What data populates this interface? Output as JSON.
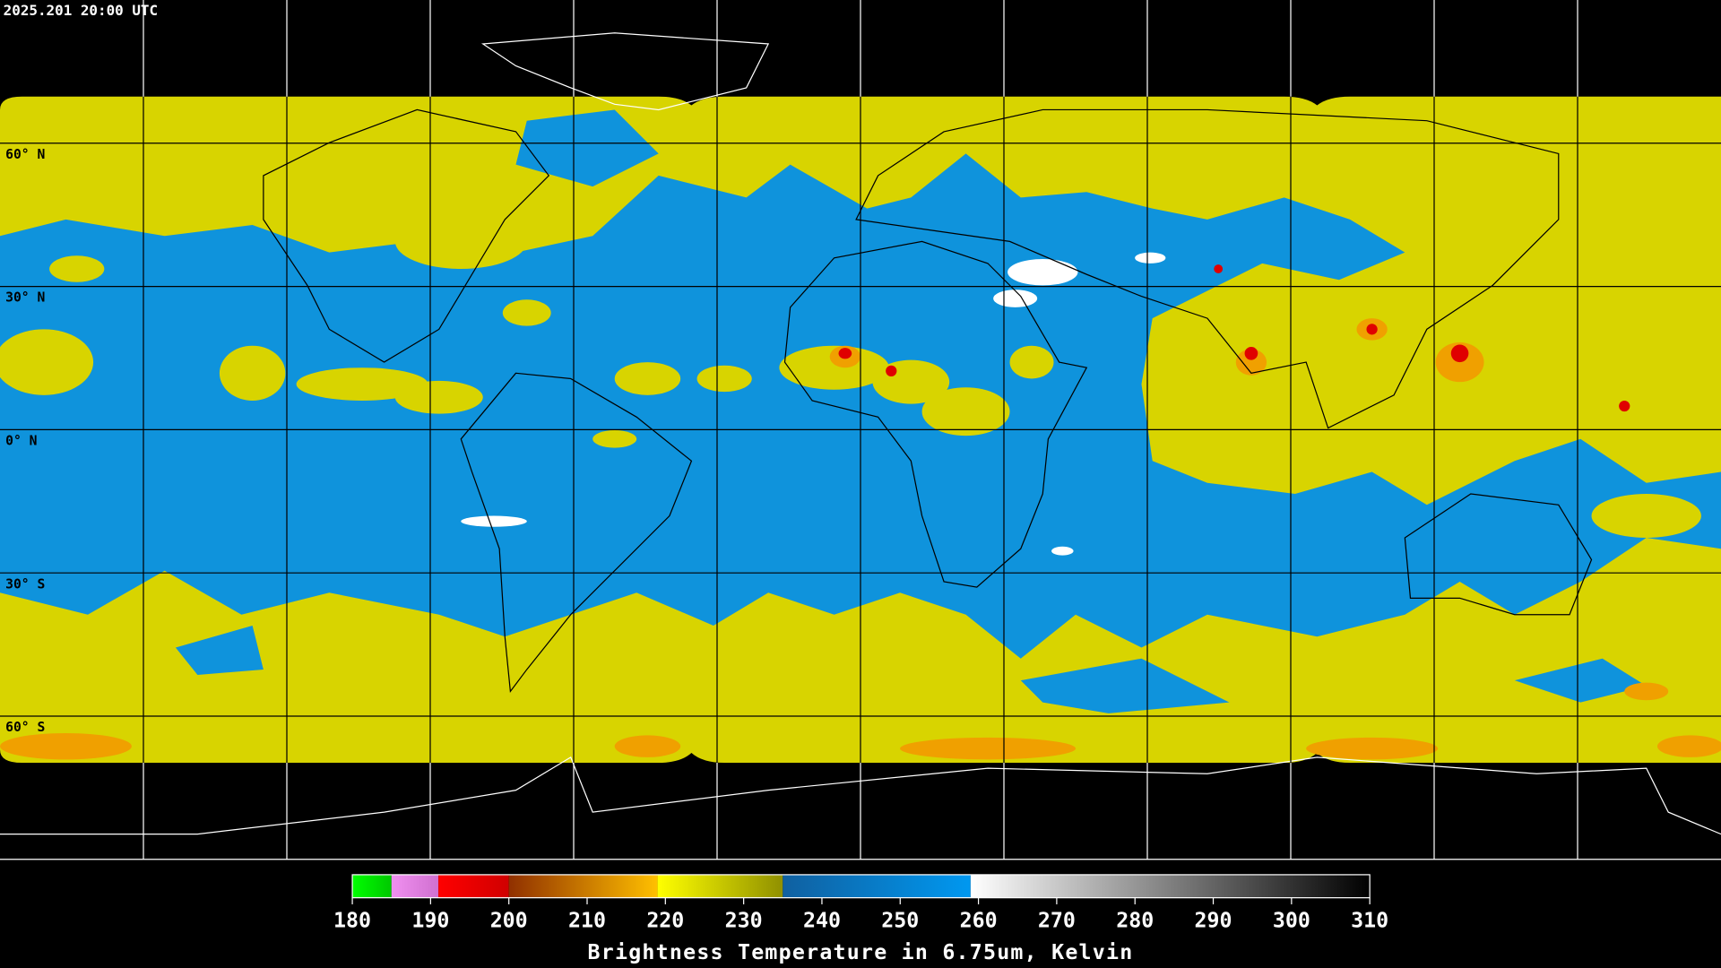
{
  "header": {
    "timestamp": "2025.201 20:00 UTC"
  },
  "map": {
    "latitude_labels": [
      {
        "value": 60,
        "label": "60° N"
      },
      {
        "value": 30,
        "label": "30° N"
      },
      {
        "value": 0,
        "label": "0° N"
      },
      {
        "value": -30,
        "label": "30° S"
      },
      {
        "value": -60,
        "label": "60° S"
      }
    ]
  },
  "colorbar": {
    "title": "Brightness Temperature in 6.75um, Kelvin",
    "range": [
      180,
      310
    ],
    "ticks": [
      180,
      190,
      200,
      210,
      220,
      230,
      240,
      250,
      260,
      270,
      280,
      290,
      300,
      310
    ],
    "segments": [
      {
        "from": 180,
        "to": 185,
        "colors": [
          "#00ff00",
          "#00c800"
        ]
      },
      {
        "from": 185,
        "to": 191,
        "colors": [
          "#f090f0",
          "#d070d0"
        ]
      },
      {
        "from": 191,
        "to": 200,
        "colors": [
          "#ff0000",
          "#d00000"
        ]
      },
      {
        "from": 200,
        "to": 219,
        "colors": [
          "#903000",
          "#ffc000"
        ]
      },
      {
        "from": 219,
        "to": 235,
        "colors": [
          "#ffff00",
          "#909000"
        ]
      },
      {
        "from": 235,
        "to": 259,
        "colors": [
          "#1060a0",
          "#0098f0"
        ]
      },
      {
        "from": 259,
        "to": 310,
        "colors": [
          "#ffffff",
          "#000000"
        ]
      }
    ]
  }
}
